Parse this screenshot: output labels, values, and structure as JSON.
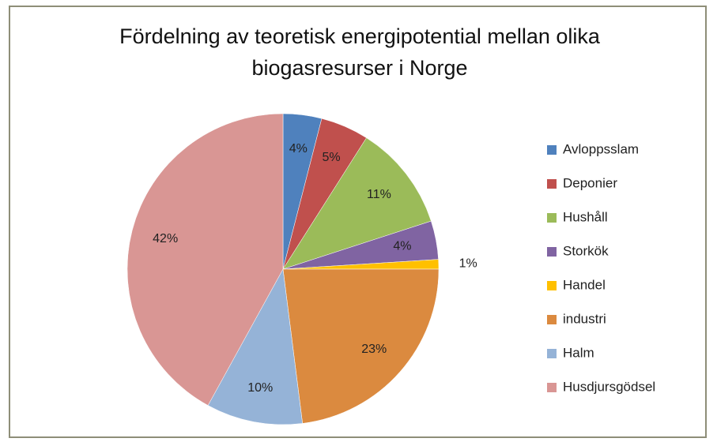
{
  "chart_data": {
    "type": "pie",
    "title": "Fördelning av teoretisk energipotential mellan olika biogasresurser i Norge",
    "categories": [
      "Avloppsslam",
      "Deponier",
      "Hushåll",
      "Storkök",
      "Handel",
      "industri",
      "Halm",
      "Husdjursgödsel"
    ],
    "values": [
      4,
      5,
      11,
      4,
      1,
      23,
      10,
      42
    ],
    "value_labels": [
      "4%",
      "5%",
      "11%",
      "4%",
      "1%",
      "23%",
      "10%",
      "42%"
    ],
    "colors": [
      "#4f81bd",
      "#c0504d",
      "#9bbb59",
      "#8064a2",
      "#ffc000",
      "#db8a3f",
      "#95b3d7",
      "#d99694"
    ],
    "legend": "right"
  }
}
